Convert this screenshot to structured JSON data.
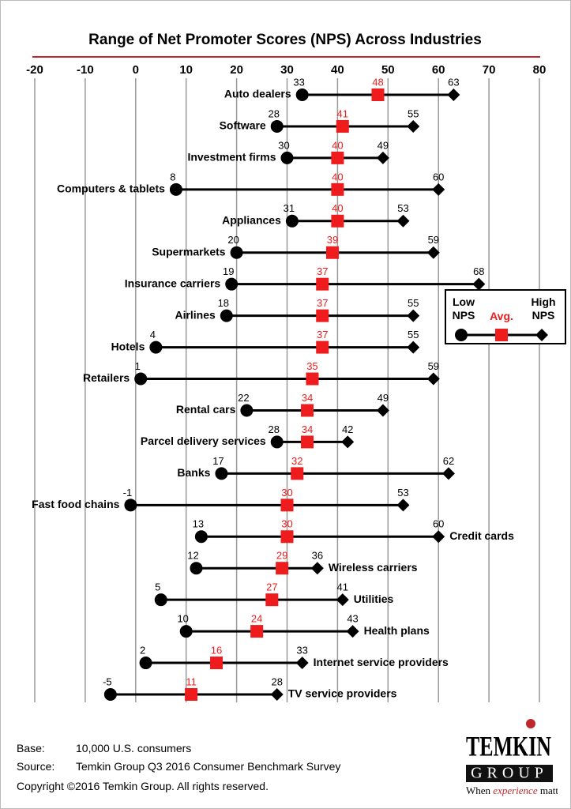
{
  "chart_data": {
    "type": "dumbbell",
    "title": "Range of Net Promoter Scores (NPS) Across Industries",
    "categories": [
      "Auto dealers",
      "Software",
      "Investment firms",
      "Computers & tablets",
      "Appliances",
      "Supermarkets",
      "Insurance carriers",
      "Airlines",
      "Hotels",
      "Retailers",
      "Rental cars",
      "Parcel delivery services",
      "Banks",
      "Fast food chains",
      "Credit cards",
      "Wireless carriers",
      "Utilities",
      "Health plans",
      "Internet service providers",
      "TV service providers"
    ],
    "series": [
      {
        "name": "Low NPS",
        "color": "#000000",
        "values": [
          33,
          28,
          30,
          8,
          31,
          20,
          19,
          18,
          4,
          1,
          22,
          28,
          17,
          -1,
          13,
          12,
          5,
          10,
          2,
          -5
        ]
      },
      {
        "name": "Avg.",
        "color": "#ee1c1c",
        "values": [
          48,
          41,
          40,
          40,
          40,
          39,
          37,
          37,
          37,
          35,
          34,
          34,
          32,
          30,
          30,
          29,
          27,
          24,
          16,
          11
        ]
      },
      {
        "name": "High NPS",
        "color": "#000000",
        "values": [
          63,
          55,
          49,
          60,
          53,
          59,
          68,
          55,
          55,
          59,
          49,
          42,
          62,
          53,
          60,
          36,
          41,
          43,
          33,
          28
        ]
      }
    ],
    "xlim": [
      -20,
      80
    ],
    "xticks": [
      -20,
      -10,
      0,
      10,
      20,
      30,
      40,
      50,
      60,
      70,
      80
    ],
    "grid": true
  },
  "footer": {
    "notes": [
      [
        "Base:",
        "10,000 U.S. consumers"
      ],
      [
        "Source:",
        "Temkin Group Q3 2016 Consumer Benchmark Survey"
      ]
    ],
    "copyright": "Copyright ©2016 Temkin Group. All rights reserved."
  },
  "logo": {
    "name": "TEMKIN",
    "group": "GROUP",
    "tagline": [
      "When",
      "experience",
      "matters"
    ]
  }
}
